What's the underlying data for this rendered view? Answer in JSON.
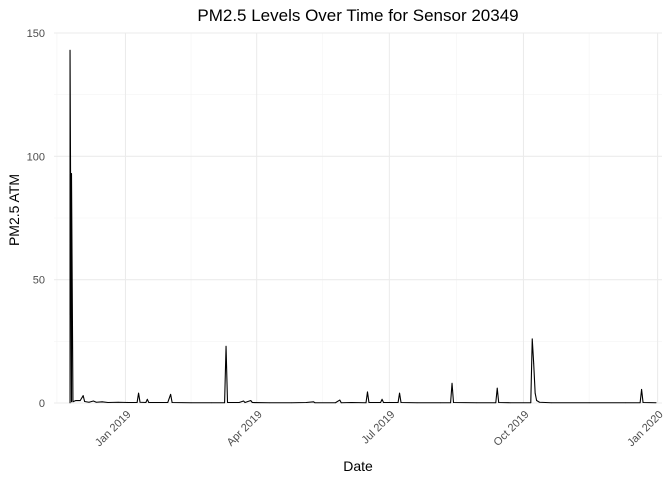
{
  "chart_data": {
    "type": "line",
    "title": "PM2.5 Levels Over Time for Sensor 20349",
    "xlabel": "Date",
    "ylabel": "PM2.5 ATM",
    "xlim": [
      "2018-11-13",
      "2020-01-04"
    ],
    "ylim": [
      0,
      150
    ],
    "y_ticks": [
      0,
      50,
      100,
      150
    ],
    "x_ticks": [
      {
        "date": "2019-01-01",
        "label": "Jan 2019"
      },
      {
        "date": "2019-04-01",
        "label": "Apr 2019"
      },
      {
        "date": "2019-07-01",
        "label": "Jul 2019"
      },
      {
        "date": "2019-10-01",
        "label": "Oct 2019"
      },
      {
        "date": "2020-01-01",
        "label": "Jan 2020"
      }
    ],
    "x_minor_ticks": [
      "2018-11-15",
      "2019-02-15",
      "2019-05-16",
      "2019-08-16",
      "2019-11-15"
    ],
    "grid": true,
    "line_color": "#000000",
    "series": [
      {
        "points": [
          [
            "2018-11-24",
            0
          ],
          [
            "2018-11-24",
            143
          ],
          [
            "2018-11-25",
            0.5
          ],
          [
            "2018-11-25",
            93
          ],
          [
            "2018-11-26",
            0.5
          ],
          [
            "2018-11-28",
            1
          ],
          [
            "2018-12-01",
            1
          ],
          [
            "2018-12-03",
            3
          ],
          [
            "2018-12-04",
            0.6
          ],
          [
            "2018-12-07",
            0.3
          ],
          [
            "2018-12-10",
            0.8
          ],
          [
            "2018-12-12",
            0.3
          ],
          [
            "2018-12-16",
            0.5
          ],
          [
            "2018-12-20",
            0.2
          ],
          [
            "2018-12-27",
            0.3
          ],
          [
            "2019-01-03",
            0.2
          ],
          [
            "2019-01-09",
            0.2
          ],
          [
            "2019-01-10",
            4
          ],
          [
            "2019-01-11",
            0.3
          ],
          [
            "2019-01-15",
            0.2
          ],
          [
            "2019-01-16",
            1.5
          ],
          [
            "2019-01-17",
            0.2
          ],
          [
            "2019-01-30",
            0.2
          ],
          [
            "2019-02-01",
            3.5
          ],
          [
            "2019-02-02",
            0.2
          ],
          [
            "2019-02-15",
            0.1
          ],
          [
            "2019-03-01",
            0.1
          ],
          [
            "2019-03-10",
            0.1
          ],
          [
            "2019-03-11",
            23
          ],
          [
            "2019-03-12",
            0.2
          ],
          [
            "2019-03-20",
            0.2
          ],
          [
            "2019-03-23",
            0.8
          ],
          [
            "2019-03-24",
            0.2
          ],
          [
            "2019-03-28",
            1
          ],
          [
            "2019-03-29",
            0.2
          ],
          [
            "2019-04-10",
            0.1
          ],
          [
            "2019-04-25",
            0.1
          ],
          [
            "2019-05-05",
            0.2
          ],
          [
            "2019-05-10",
            0.5
          ],
          [
            "2019-05-11",
            0.1
          ],
          [
            "2019-05-25",
            0.1
          ],
          [
            "2019-05-28",
            1.2
          ],
          [
            "2019-05-29",
            0.1
          ],
          [
            "2019-06-05",
            0.2
          ],
          [
            "2019-06-15",
            0.1
          ],
          [
            "2019-06-16",
            4.5
          ],
          [
            "2019-06-17",
            0.2
          ],
          [
            "2019-06-25",
            0.2
          ],
          [
            "2019-06-26",
            1.5
          ],
          [
            "2019-06-27",
            0.2
          ],
          [
            "2019-07-07",
            0.2
          ],
          [
            "2019-07-08",
            4
          ],
          [
            "2019-07-09",
            0.2
          ],
          [
            "2019-07-20",
            0.1
          ],
          [
            "2019-08-05",
            0.1
          ],
          [
            "2019-08-12",
            0.1
          ],
          [
            "2019-08-13",
            8
          ],
          [
            "2019-08-14",
            0.2
          ],
          [
            "2019-08-30",
            0.1
          ],
          [
            "2019-09-12",
            0.1
          ],
          [
            "2019-09-13",
            6
          ],
          [
            "2019-09-14",
            0.2
          ],
          [
            "2019-09-22",
            0.1
          ],
          [
            "2019-10-06",
            0.1
          ],
          [
            "2019-10-07",
            26
          ],
          [
            "2019-10-08",
            16
          ],
          [
            "2019-10-09",
            4
          ],
          [
            "2019-10-10",
            1
          ],
          [
            "2019-10-12",
            0.3
          ],
          [
            "2019-10-20",
            0.1
          ],
          [
            "2019-11-15",
            0.1
          ],
          [
            "2019-12-10",
            0.1
          ],
          [
            "2019-12-20",
            0.1
          ],
          [
            "2019-12-21",
            5.5
          ],
          [
            "2019-12-22",
            0.2
          ],
          [
            "2019-12-31",
            0.1
          ]
        ]
      }
    ]
  }
}
